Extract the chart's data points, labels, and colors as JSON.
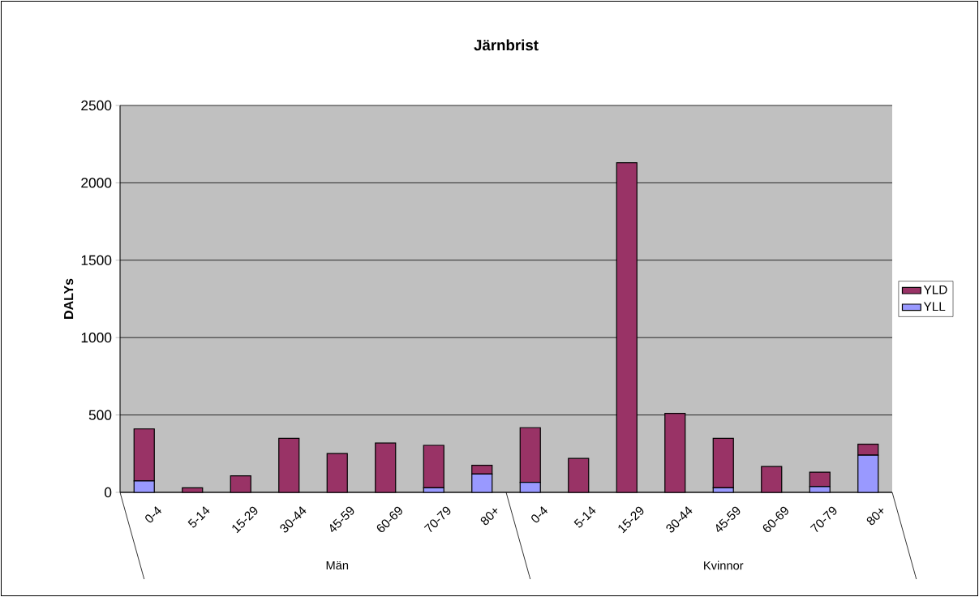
{
  "chart_data": {
    "type": "bar",
    "title": "Järnbrist",
    "ylabel": "DALYs",
    "categories": [
      "0-4",
      "5-14",
      "15-29",
      "30-44",
      "45-59",
      "60-69",
      "70-79",
      "80+",
      "0-4",
      "5-14",
      "15-29",
      "30-44",
      "45-59",
      "60-69",
      "70-79",
      "80+"
    ],
    "series": [
      {
        "name": "YLL",
        "color": "#9999ff",
        "values": [
          74,
          0,
          0,
          0,
          0,
          0,
          30,
          119,
          65,
          0,
          0,
          0,
          30,
          0,
          37,
          240
        ]
      },
      {
        "name": "YLD",
        "color": "#993366",
        "values": [
          336,
          30,
          107,
          349,
          251,
          319,
          274,
          56,
          353,
          219,
          2130,
          510,
          319,
          167,
          93,
          71
        ]
      }
    ],
    "stacked": true,
    "ylim": [
      0,
      2500
    ],
    "yticks": [
      0,
      500,
      1000,
      1500,
      2000,
      2500
    ],
    "grid": "y",
    "legend": "right",
    "annotations": [
      "Män",
      "Kvinnor"
    ]
  }
}
